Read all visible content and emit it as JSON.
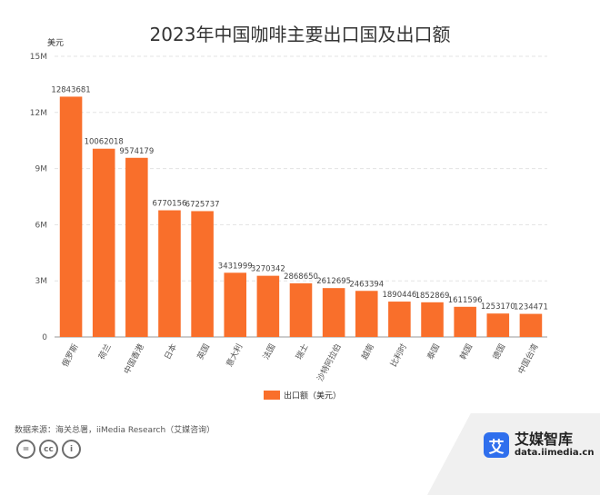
{
  "chart_data": {
    "type": "bar",
    "title": "2023年中国咖啡主要出口国及出口额",
    "ylabel": "美元",
    "xlabel": "",
    "ylim": [
      0,
      15000000
    ],
    "ytick_values": [
      0,
      3000000,
      6000000,
      9000000,
      12000000,
      15000000
    ],
    "ytick_labels": [
      "0",
      "3M",
      "6M",
      "9M",
      "12M",
      "15M"
    ],
    "categories": [
      "俄罗斯",
      "荷兰",
      "中国香港",
      "日本",
      "英国",
      "意大利",
      "法国",
      "瑞士",
      "沙特阿拉伯",
      "越南",
      "比利时",
      "泰国",
      "韩国",
      "德国",
      "中国台湾"
    ],
    "series": [
      {
        "name": "出口额（美元）",
        "values": [
          12843681,
          10062018,
          9574179,
          6770156,
          6725737,
          3431999,
          3270342,
          2868650,
          2612695,
          2463394,
          1890446,
          1852869,
          1611596,
          1253170,
          1234471
        ],
        "labels": [
          "12843681",
          "10062018",
          "9574179",
          "6770156",
          "6725737",
          "3431999",
          "3270342",
          "2868650",
          "2612695",
          "2463394",
          "1890446",
          "1852869",
          "1611596",
          "1253170",
          "1234471"
        ]
      }
    ],
    "bar_color": "#f96f2b",
    "grid": true,
    "legend_position": "bottom"
  },
  "footer": {
    "source": "数据来源：海关总署，iiMedia Research（艾媒咨询）",
    "license_icons": [
      "=",
      "cc",
      "i"
    ]
  },
  "brand": {
    "logo_text": "艾",
    "name": "艾媒智库",
    "url": "data.iimedia.cn",
    "color": "#2f6fed"
  }
}
